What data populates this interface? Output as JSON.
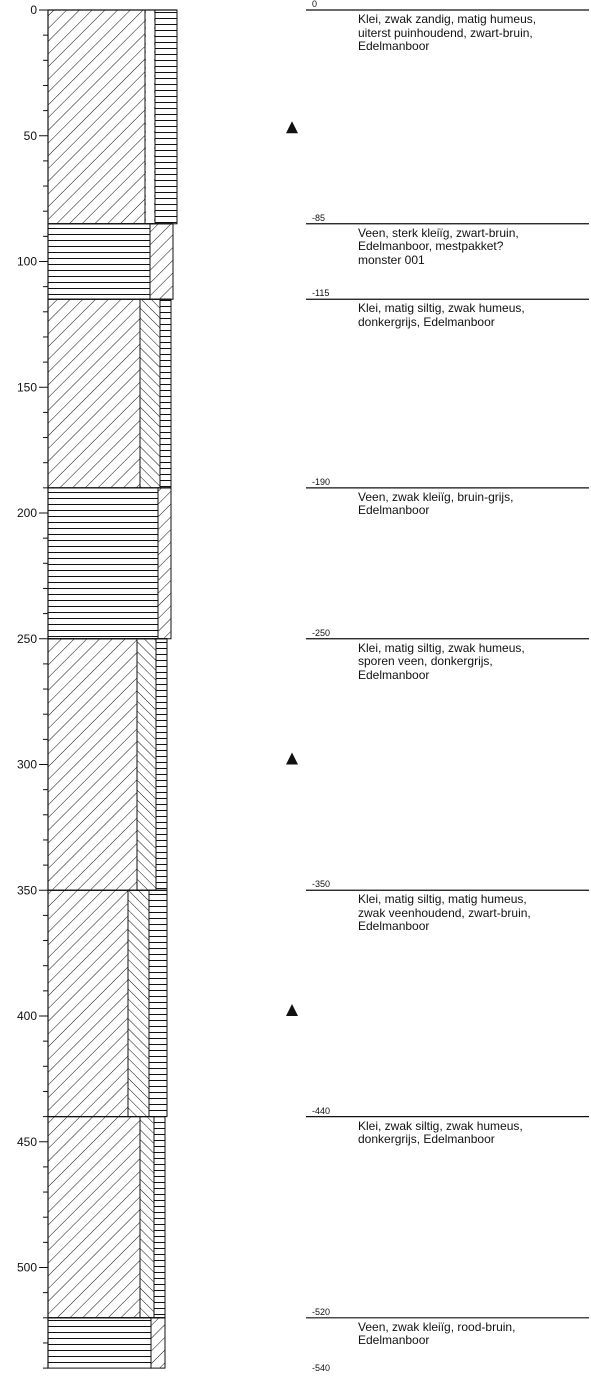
{
  "axis": {
    "ticks": [
      "0",
      "50",
      "100",
      "150",
      "200",
      "250",
      "300",
      "350",
      "400",
      "450",
      "500"
    ],
    "tick_values": [
      0,
      50,
      100,
      150,
      200,
      250,
      300,
      350,
      400,
      450,
      500
    ],
    "range": [
      0,
      540
    ],
    "minor_step": 10
  },
  "layers": [
    {
      "depth_label": "0",
      "top": 0,
      "bottom": 85,
      "lithology": "clay-sand-rubble",
      "description": "Klei, zwak zandig, matig humeus,\nuiterst puinhoudend, zwart-bruin,\nEdelmanboor"
    },
    {
      "depth_label": "-85",
      "top": 85,
      "bottom": 115,
      "lithology": "peat-clayey",
      "description": "Veen, sterk kleiïg, zwart-bruin,\nEdelmanboor, mestpakket?\nmonster 001"
    },
    {
      "depth_label": "-115",
      "top": 115,
      "bottom": 190,
      "lithology": "clay-silt-humus",
      "description": "Klei, matig siltig, zwak humeus,\ndonkergrijs, Edelmanboor"
    },
    {
      "depth_label": "-190",
      "top": 190,
      "bottom": 250,
      "lithology": "peat-weakly-clayey",
      "description": "Veen, zwak kleiïg, bruin-grijs,\nEdelmanboor"
    },
    {
      "depth_label": "-250",
      "top": 250,
      "bottom": 350,
      "lithology": "clay-silt-humus-peat",
      "description": "Klei, matig siltig, zwak humeus,\nsporen veen, donkergrijs,\nEdelmanboor"
    },
    {
      "depth_label": "-350",
      "top": 350,
      "bottom": 440,
      "lithology": "clay-silt-humus-peaty",
      "description": "Klei, matig siltig, matig humeus,\nzwak veenhoudend, zwart-bruin,\nEdelmanboor"
    },
    {
      "depth_label": "-440",
      "top": 440,
      "bottom": 520,
      "lithology": "clay-weak-silt",
      "description": "Klei, zwak siltig, zwak humeus,\ndonkergrijs, Edelmanboor"
    },
    {
      "depth_label": "-520",
      "top": 520,
      "bottom": 540,
      "lithology": "peat-red-brown",
      "description": "Veen, zwak kleiïg, rood-bruin,\nEdelmanboor"
    }
  ],
  "end_label": "-540",
  "markers": [
    {
      "icon": "triangle-marker-icon",
      "depth": 47
    },
    {
      "icon": "triangle-marker-icon",
      "depth": 298
    },
    {
      "icon": "triangle-marker-icon",
      "depth": 398
    }
  ]
}
